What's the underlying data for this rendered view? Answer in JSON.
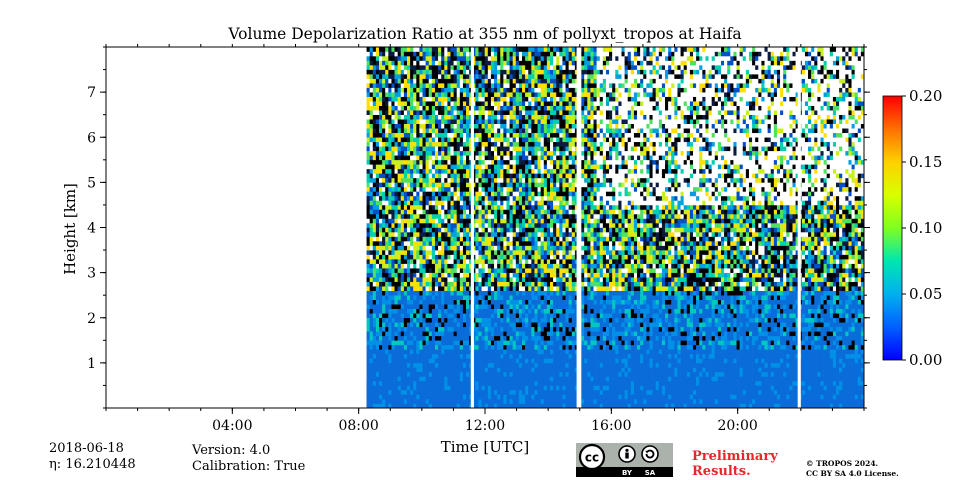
{
  "chart_data": {
    "type": "heatmap",
    "title": "Volume Depolarization Ratio at 355 nm of pollyxt_tropos at Haifa",
    "xlabel": "Time [UTC]",
    "ylabel": "Height [km]",
    "x_range_hours": [
      0,
      24
    ],
    "ylim_km": [
      0,
      8
    ],
    "x_ticks": [
      {
        "hour": 4,
        "label": "04:00"
      },
      {
        "hour": 8,
        "label": "08:00"
      },
      {
        "hour": 12,
        "label": "12:00"
      },
      {
        "hour": 16,
        "label": "16:00"
      },
      {
        "hour": 20,
        "label": "20:00"
      }
    ],
    "y_ticks": [
      {
        "km": 1,
        "label": "1"
      },
      {
        "km": 2,
        "label": "2"
      },
      {
        "km": 3,
        "label": "3"
      },
      {
        "km": 4,
        "label": "4"
      },
      {
        "km": 5,
        "label": "5"
      },
      {
        "km": 6,
        "label": "6"
      },
      {
        "km": 7,
        "label": "7"
      }
    ],
    "colorbar": {
      "min": 0.0,
      "max": 0.2,
      "ticks": [
        {
          "value": 0.0,
          "label": "0.00"
        },
        {
          "value": 0.05,
          "label": "0.05"
        },
        {
          "value": 0.1,
          "label": "0.10"
        },
        {
          "value": 0.15,
          "label": "0.15"
        },
        {
          "value": 0.2,
          "label": "0.20"
        }
      ],
      "colormap": "jet"
    },
    "data_start_hour": 8.25,
    "data_end_hour": 24,
    "gaps_hours": [
      [
        11.55,
        11.65
      ],
      [
        14.9,
        15.05
      ],
      [
        21.9,
        22.0
      ]
    ],
    "depol_near_surface": 0.03
  },
  "metadata": {
    "date": "2018-06-18",
    "eta": "16.210448",
    "eta_prefix": "η: ",
    "version": "Version: 4.0",
    "calibration": "Calibration: True",
    "preliminary_line1": "Preliminary",
    "preliminary_line2": "Results.",
    "copyright_line1": "© TROPOS 2024.",
    "copyright_line2": "CC BY SA 4.0 License.",
    "license_badge": {
      "by": "BY",
      "sa": "SA",
      "cc": "cc"
    }
  },
  "colors": {
    "preliminary": "#e8262b"
  }
}
